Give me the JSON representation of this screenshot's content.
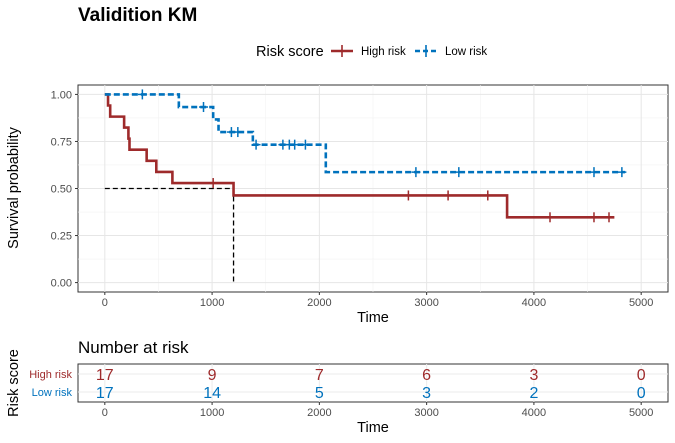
{
  "chart_data": [
    {
      "type": "line",
      "subtype": "kaplan-meier",
      "title": "Validition KM",
      "xlabel": "Time",
      "ylabel": "Survival probability",
      "xlim": [
        -250,
        5250
      ],
      "ylim": [
        -0.05,
        1.05
      ],
      "x_ticks": [
        0,
        1000,
        2000,
        3000,
        4000,
        5000
      ],
      "y_ticks": [
        0.0,
        0.25,
        0.5,
        0.75,
        1.0
      ],
      "y_tick_labels": [
        "0.00",
        "0.25",
        "0.50",
        "0.75",
        "1.00"
      ],
      "grid": true,
      "legend": {
        "title": "Risk score",
        "position": "top"
      },
      "median_reference": {
        "y": 0.5,
        "x": 1200
      },
      "series": [
        {
          "name": "High risk",
          "color": "#9E2A2B",
          "line_style": "solid",
          "steps": [
            [
              0,
              1.0
            ],
            [
              30,
              0.941
            ],
            [
              50,
              0.882
            ],
            [
              180,
              0.824
            ],
            [
              220,
              0.765
            ],
            [
              230,
              0.706
            ],
            [
              390,
              0.647
            ],
            [
              480,
              0.588
            ],
            [
              630,
              0.529
            ],
            [
              1200,
              0.463
            ],
            [
              3750,
              0.347
            ],
            [
              4750,
              0.347
            ]
          ],
          "censor_marks": [
            [
              1010,
              0.529
            ],
            [
              2830,
              0.463
            ],
            [
              3200,
              0.463
            ],
            [
              3570,
              0.463
            ],
            [
              4150,
              0.347
            ],
            [
              4560,
              0.347
            ],
            [
              4700,
              0.347
            ]
          ]
        },
        {
          "name": "Low risk",
          "color": "#0072BD",
          "line_style": "dashed",
          "steps": [
            [
              0,
              1.0
            ],
            [
              690,
              0.933
            ],
            [
              1010,
              0.867
            ],
            [
              1060,
              0.8
            ],
            [
              1380,
              0.733
            ],
            [
              2060,
              0.587
            ],
            [
              4850,
              0.587
            ]
          ],
          "censor_marks": [
            [
              350,
              1.0
            ],
            [
              920,
              0.933
            ],
            [
              1180,
              0.8
            ],
            [
              1240,
              0.8
            ],
            [
              1410,
              0.733
            ],
            [
              1660,
              0.733
            ],
            [
              1720,
              0.733
            ],
            [
              1770,
              0.733
            ],
            [
              1870,
              0.733
            ],
            [
              2900,
              0.587
            ],
            [
              3300,
              0.587
            ],
            [
              4560,
              0.587
            ],
            [
              4820,
              0.587
            ]
          ]
        }
      ]
    },
    {
      "type": "table",
      "title": "Number at risk",
      "xlabel": "Time",
      "ylabel": "Risk score",
      "x_ticks": [
        0,
        1000,
        2000,
        3000,
        4000,
        5000
      ],
      "rows": [
        {
          "name": "High risk",
          "color": "#9E2A2B",
          "values": [
            17,
            9,
            7,
            6,
            3,
            0
          ]
        },
        {
          "name": "Low risk",
          "color": "#0072BD",
          "values": [
            17,
            14,
            5,
            3,
            2,
            0
          ]
        }
      ]
    }
  ]
}
